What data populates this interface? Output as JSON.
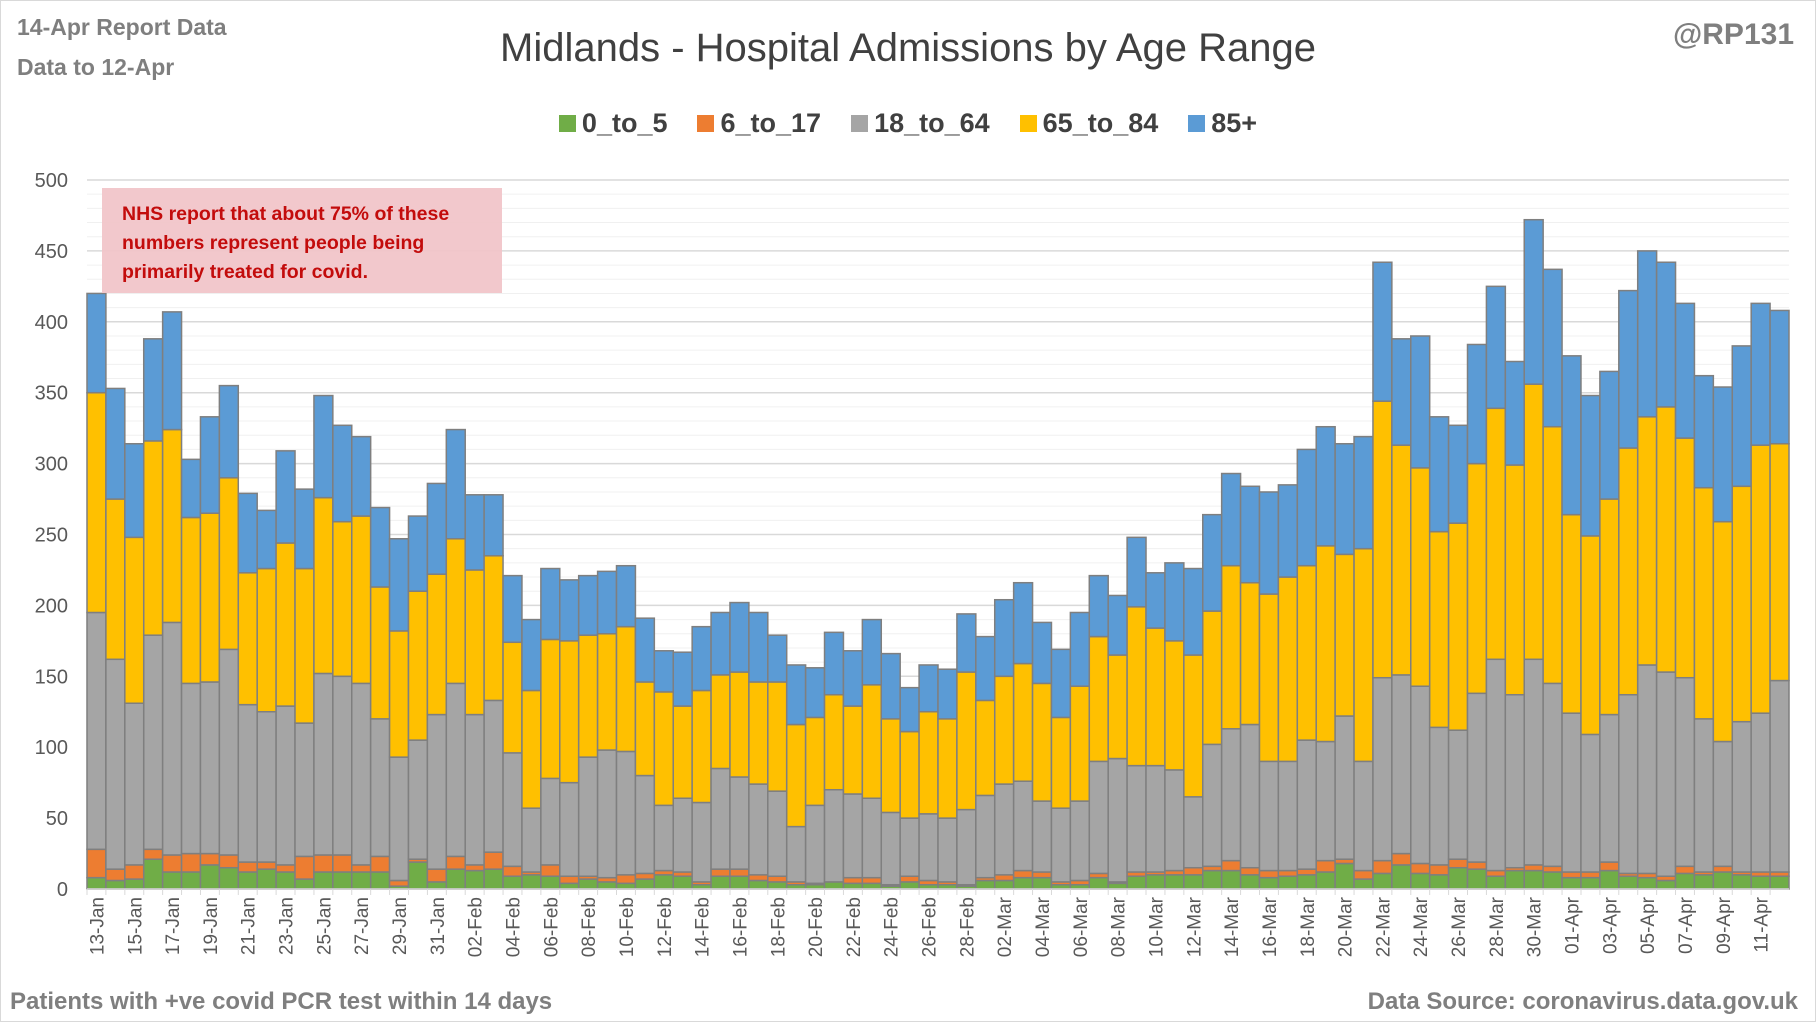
{
  "header": {
    "report_line": "14-Apr Report Data",
    "data_line": "Data to 12-Apr",
    "handle": "@RP131"
  },
  "annotation": "NHS report that about 75% of these numbers represent people being primarily treated for covid.",
  "footer": {
    "left": "Patients with  +ve covid PCR test within 14 days",
    "right": "Data Source: coronavirus.data.gov.uk"
  },
  "chart_data": {
    "type": "bar",
    "stacked": true,
    "title": "Midlands - Hospital Admissions by Age Range",
    "xlabel": "",
    "ylabel": "",
    "ylim": [
      0,
      500
    ],
    "yticks": [
      0,
      50,
      100,
      150,
      200,
      250,
      300,
      350,
      400,
      450,
      500
    ],
    "grid": true,
    "legend_position": "top",
    "categories": [
      "13-Jan",
      "14-Jan",
      "15-Jan",
      "16-Jan",
      "17-Jan",
      "18-Jan",
      "19-Jan",
      "20-Jan",
      "21-Jan",
      "22-Jan",
      "23-Jan",
      "24-Jan",
      "25-Jan",
      "26-Jan",
      "27-Jan",
      "28-Jan",
      "29-Jan",
      "30-Jan",
      "31-Jan",
      "01-Feb",
      "02-Feb",
      "03-Feb",
      "04-Feb",
      "05-Feb",
      "06-Feb",
      "07-Feb",
      "08-Feb",
      "09-Feb",
      "10-Feb",
      "11-Feb",
      "12-Feb",
      "13-Feb",
      "14-Feb",
      "15-Feb",
      "16-Feb",
      "17-Feb",
      "18-Feb",
      "19-Feb",
      "20-Feb",
      "21-Feb",
      "22-Feb",
      "23-Feb",
      "24-Feb",
      "25-Feb",
      "26-Feb",
      "27-Feb",
      "28-Feb",
      "01-Mar",
      "02-Mar",
      "03-Mar",
      "04-Mar",
      "05-Mar",
      "06-Mar",
      "07-Mar",
      "08-Mar",
      "09-Mar",
      "10-Mar",
      "11-Mar",
      "12-Mar",
      "13-Mar",
      "14-Mar",
      "15-Mar",
      "16-Mar",
      "17-Mar",
      "18-Mar",
      "19-Mar",
      "20-Mar",
      "21-Mar",
      "22-Mar",
      "23-Mar",
      "24-Mar",
      "25-Mar",
      "26-Mar",
      "27-Mar",
      "28-Mar",
      "29-Mar",
      "30-Mar",
      "31-Mar",
      "01-Apr",
      "02-Apr",
      "03-Apr",
      "04-Apr",
      "05-Apr",
      "06-Apr",
      "07-Apr",
      "08-Apr",
      "09-Apr",
      "10-Apr",
      "11-Apr",
      "12-Apr"
    ],
    "series": [
      {
        "name": "0_to_5",
        "color": "#70ad47",
        "values": [
          8,
          6,
          7,
          21,
          12,
          12,
          17,
          15,
          12,
          14,
          12,
          7,
          12,
          12,
          12,
          12,
          2,
          19,
          5,
          14,
          13,
          14,
          9,
          10,
          9,
          4,
          7,
          5,
          4,
          7,
          10,
          9,
          3,
          9,
          9,
          6,
          5,
          3,
          3,
          5,
          4,
          4,
          2,
          5,
          3,
          3,
          2,
          6,
          6,
          8,
          8,
          3,
          3,
          8,
          4,
          9,
          10,
          10,
          10,
          13,
          13,
          10,
          8,
          9,
          10,
          12,
          18,
          7,
          11,
          17,
          11,
          10,
          15,
          14,
          9,
          13,
          13,
          12,
          8,
          8,
          13,
          9,
          8,
          6,
          11,
          10,
          12,
          10,
          9,
          9
        ]
      },
      {
        "name": "6_to_17",
        "color": "#ed7d31",
        "values": [
          20,
          8,
          10,
          7,
          12,
          13,
          8,
          9,
          7,
          5,
          5,
          16,
          12,
          12,
          5,
          11,
          4,
          2,
          9,
          9,
          4,
          12,
          7,
          2,
          8,
          5,
          2,
          3,
          6,
          4,
          3,
          3,
          2,
          5,
          5,
          4,
          4,
          2,
          1,
          0,
          4,
          4,
          1,
          4,
          3,
          2,
          1,
          2,
          4,
          5,
          4,
          2,
          3,
          3,
          1,
          3,
          2,
          3,
          5,
          3,
          7,
          5,
          5,
          4,
          4,
          8,
          3,
          6,
          9,
          8,
          7,
          7,
          6,
          5,
          4,
          2,
          4,
          4,
          4,
          4,
          6,
          2,
          3,
          3,
          5,
          2,
          4,
          2,
          3,
          3
        ]
      },
      {
        "name": "18_to_64",
        "color": "#a5a5a5",
        "values": [
          167,
          148,
          114,
          151,
          164,
          120,
          121,
          145,
          111,
          106,
          112,
          94,
          128,
          126,
          128,
          97,
          87,
          84,
          109,
          122,
          106,
          107,
          80,
          45,
          61,
          66,
          84,
          90,
          87,
          69,
          46,
          52,
          56,
          71,
          65,
          64,
          60,
          39,
          55,
          65,
          59,
          56,
          51,
          41,
          47,
          45,
          53,
          58,
          64,
          63,
          50,
          52,
          56,
          79,
          87,
          75,
          75,
          71,
          50,
          86,
          93,
          101,
          77,
          77,
          91,
          84,
          101,
          77,
          129,
          126,
          125,
          97,
          91,
          119,
          149,
          122,
          145,
          129,
          112,
          97,
          104,
          126,
          147,
          144,
          133,
          108,
          88,
          106,
          112,
          135
        ]
      },
      {
        "name": "65_to_84",
        "color": "#ffc000",
        "values": [
          155,
          113,
          117,
          137,
          136,
          117,
          119,
          121,
          93,
          101,
          115,
          109,
          124,
          109,
          118,
          93,
          89,
          105,
          99,
          102,
          102,
          102,
          78,
          83,
          98,
          100,
          86,
          82,
          88,
          66,
          80,
          65,
          79,
          66,
          74,
          72,
          77,
          72,
          62,
          67,
          62,
          80,
          66,
          61,
          72,
          70,
          97,
          67,
          76,
          83,
          83,
          64,
          81,
          88,
          73,
          112,
          97,
          91,
          100,
          94,
          115,
          100,
          118,
          130,
          123,
          138,
          114,
          150,
          195,
          162,
          154,
          138,
          146,
          162,
          177,
          162,
          194,
          181,
          140,
          140,
          152,
          174,
          175,
          187,
          169,
          163,
          155,
          166,
          189,
          167
        ]
      },
      {
        "name": "85+",
        "color": "#5b9bd5",
        "values": [
          70,
          78,
          66,
          72,
          83,
          41,
          68,
          65,
          56,
          41,
          65,
          56,
          72,
          68,
          56,
          56,
          65,
          53,
          64,
          77,
          53,
          43,
          47,
          50,
          50,
          43,
          42,
          44,
          43,
          45,
          29,
          38,
          45,
          44,
          49,
          49,
          33,
          42,
          35,
          44,
          39,
          46,
          46,
          31,
          33,
          35,
          41,
          45,
          54,
          57,
          43,
          48,
          52,
          43,
          42,
          49,
          39,
          55,
          61,
          68,
          65,
          68,
          72,
          65,
          82,
          84,
          78,
          79,
          98,
          75,
          93,
          81,
          69,
          84,
          86,
          73,
          116,
          111,
          112,
          99,
          90,
          111,
          117,
          102,
          95,
          79,
          95,
          99,
          100,
          94
        ]
      }
    ]
  }
}
